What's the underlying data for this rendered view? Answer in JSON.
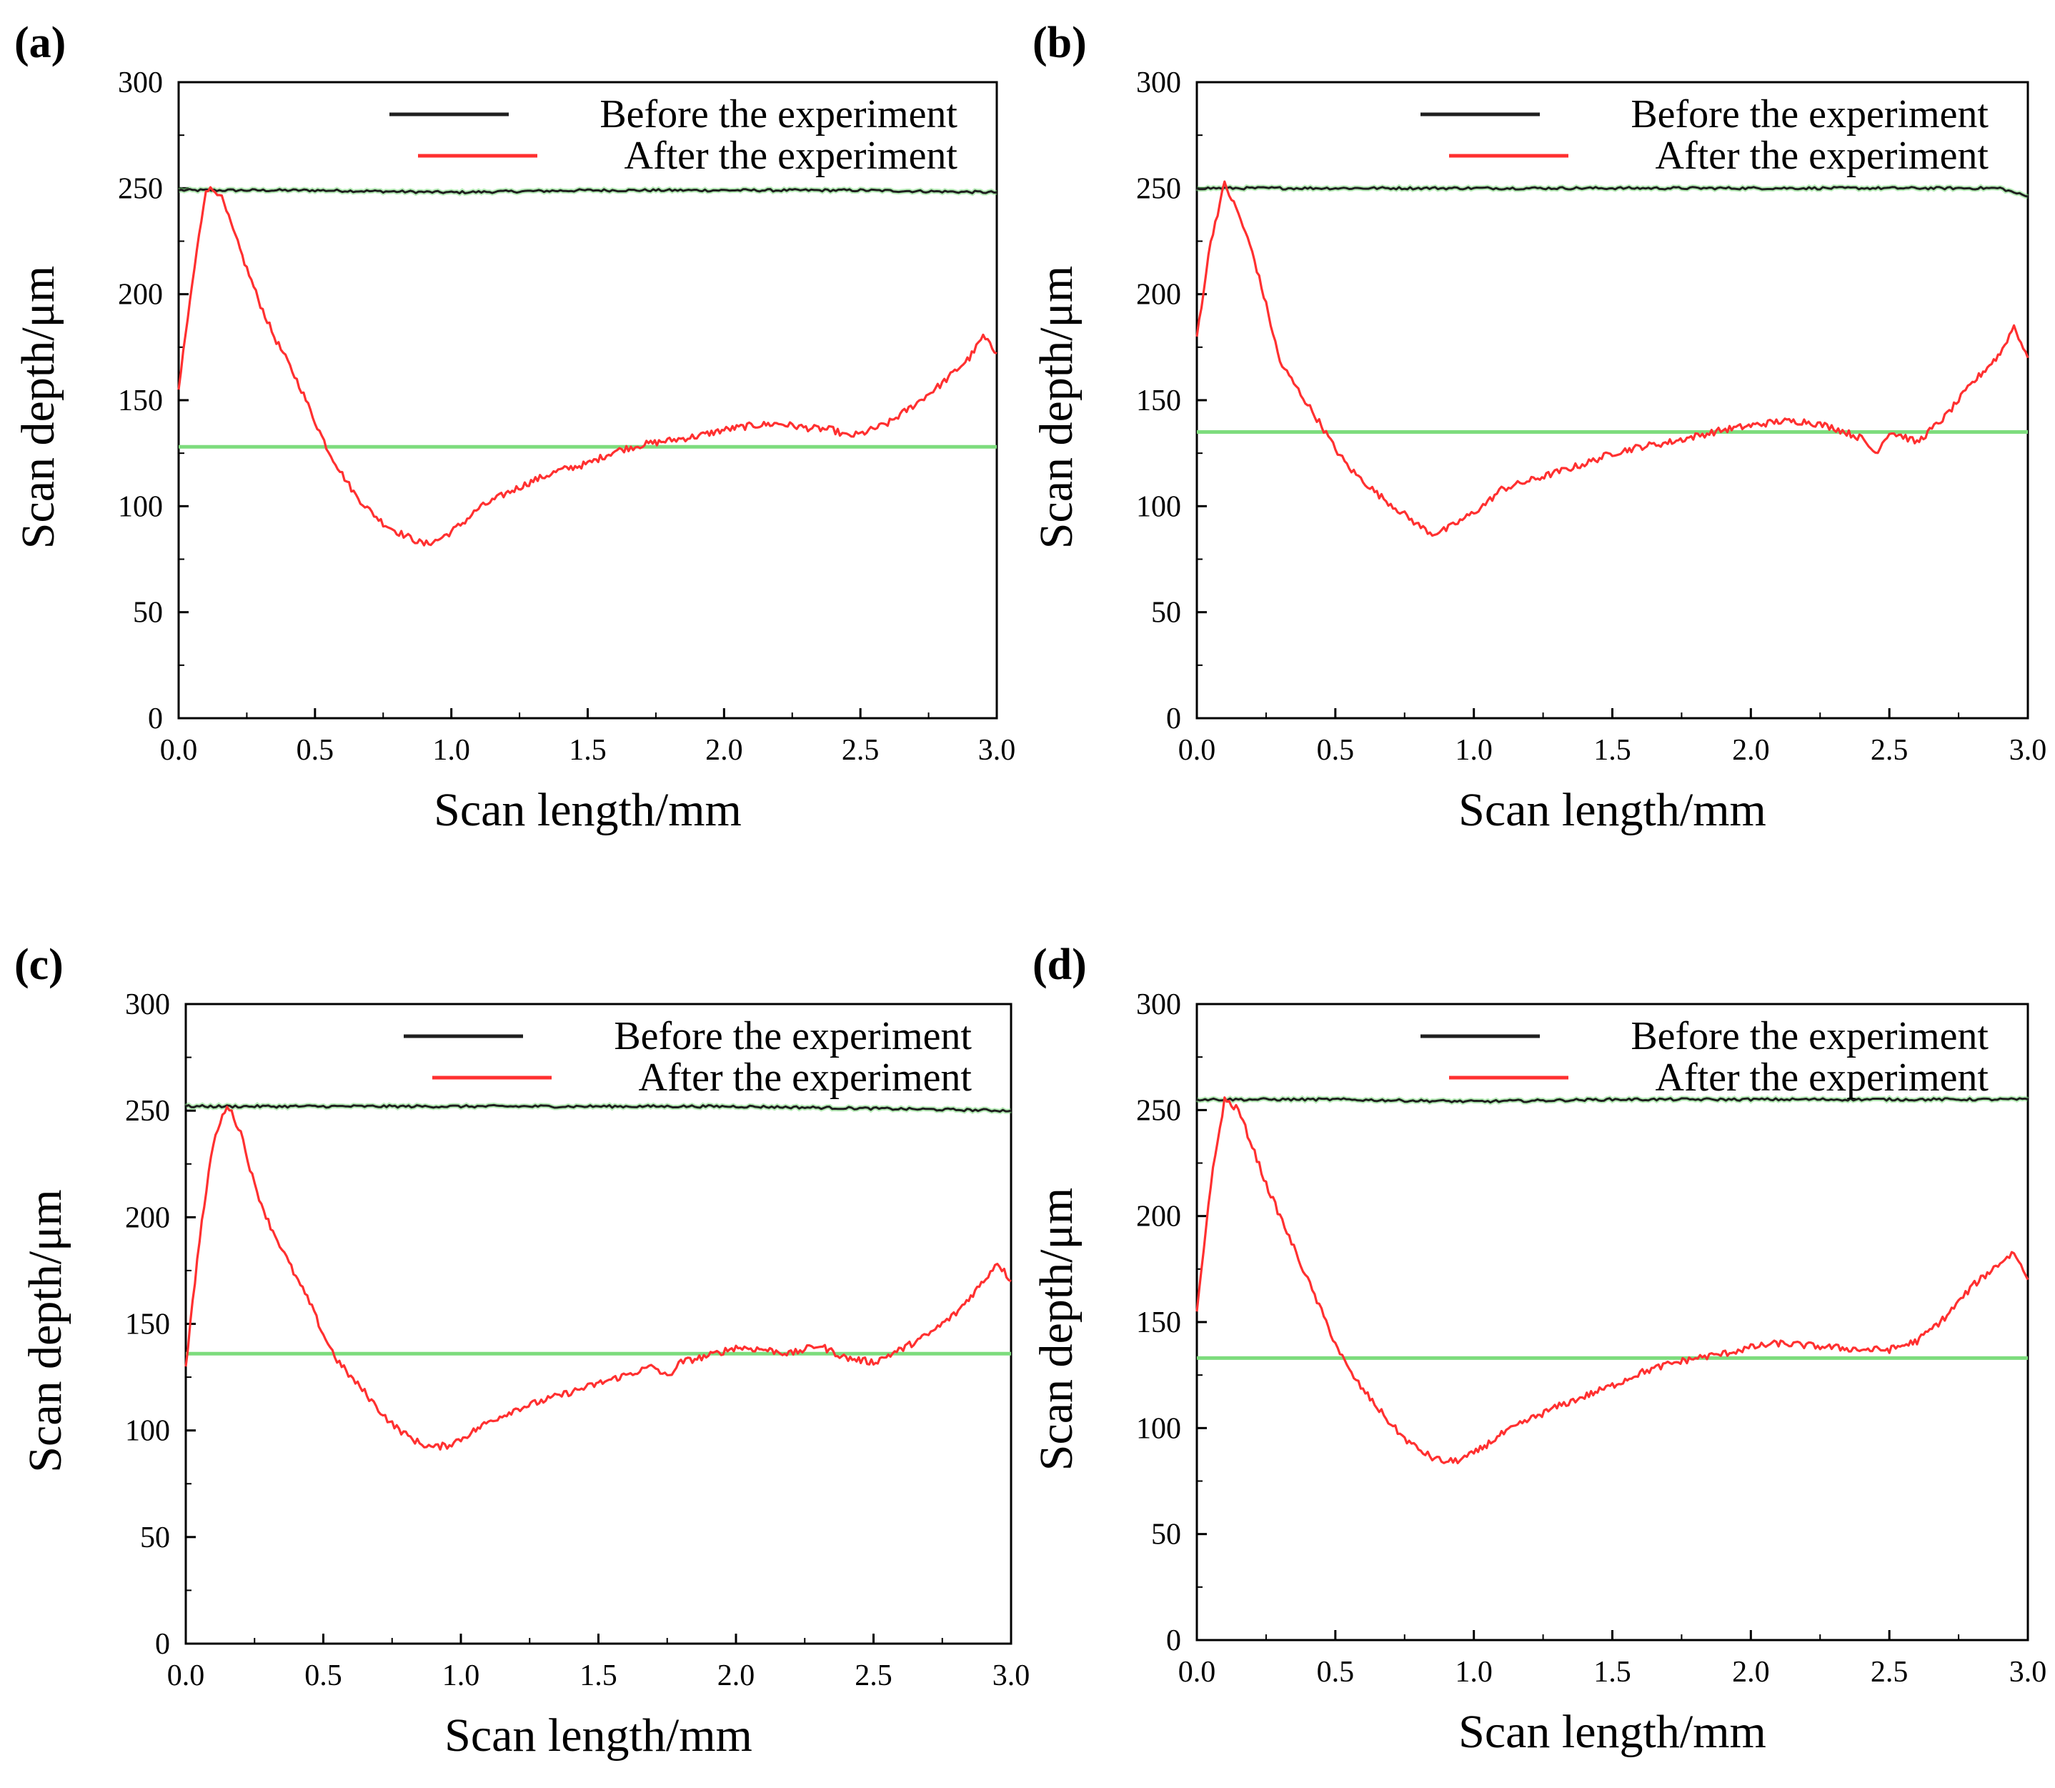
{
  "figure": {
    "colors": {
      "before": "#1f1f1f",
      "after": "#ff3030",
      "ref": "#7ddc7d",
      "axis": "#000000"
    }
  },
  "chart_data": [
    {
      "panel": "(a)",
      "type": "line",
      "xlabel": "Scan length/mm",
      "ylabel": "Scan depth/μm",
      "xlim": [
        0.0,
        3.0
      ],
      "ylim": [
        0,
        300
      ],
      "xticks": [
        "0.0",
        "0.5",
        "1.0",
        "1.5",
        "2.0",
        "2.5",
        "3.0"
      ],
      "yticks": [
        "0",
        "50",
        "100",
        "150",
        "200",
        "250",
        "300"
      ],
      "legend": [
        "Before the experiment",
        "After the experiment"
      ],
      "ref_line_y": 128,
      "series": [
        {
          "name": "Before the experiment",
          "x": [
            0.0,
            0.5,
            1.0,
            1.5,
            2.0,
            2.5,
            3.0
          ],
          "y": [
            249,
            249,
            248,
            249,
            249,
            249,
            248
          ]
        },
        {
          "name": "After the experiment",
          "x": [
            0.0,
            0.05,
            0.1,
            0.15,
            0.2,
            0.25,
            0.3,
            0.35,
            0.4,
            0.45,
            0.5,
            0.55,
            0.6,
            0.65,
            0.7,
            0.75,
            0.8,
            0.85,
            0.9,
            0.95,
            1.0,
            1.05,
            1.1,
            1.2,
            1.3,
            1.4,
            1.5,
            1.6,
            1.7,
            1.8,
            1.9,
            2.0,
            2.1,
            2.2,
            2.3,
            2.4,
            2.45,
            2.5,
            2.6,
            2.7,
            2.8,
            2.9,
            2.95,
            3.0
          ],
          "y": [
            155,
            205,
            250,
            248,
            230,
            212,
            195,
            180,
            168,
            155,
            140,
            126,
            115,
            105,
            98,
            92,
            88,
            85,
            82,
            84,
            88,
            93,
            99,
            106,
            112,
            117,
            120,
            126,
            129,
            131,
            133,
            136,
            138,
            139,
            137,
            136,
            133,
            134,
            139,
            148,
            158,
            170,
            180,
            172
          ]
        }
      ]
    },
    {
      "panel": "(b)",
      "type": "line",
      "xlabel": "Scan length/mm",
      "ylabel": "Scan depth/μm",
      "xlim": [
        0.0,
        3.0
      ],
      "ylim": [
        0,
        300
      ],
      "xticks": [
        "0.0",
        "0.5",
        "1.0",
        "1.5",
        "2.0",
        "2.5",
        "3.0"
      ],
      "yticks": [
        "0",
        "50",
        "100",
        "150",
        "200",
        "250",
        "300"
      ],
      "legend": [
        "Before the experiment",
        "After the experiment"
      ],
      "ref_line_y": 135,
      "series": [
        {
          "name": "Before the experiment",
          "x": [
            0.0,
            0.5,
            1.0,
            1.5,
            2.0,
            2.5,
            2.9,
            3.0
          ],
          "y": [
            250,
            250,
            250,
            250,
            250,
            250,
            250,
            246
          ]
        },
        {
          "name": "After the experiment",
          "x": [
            0.0,
            0.05,
            0.1,
            0.15,
            0.2,
            0.25,
            0.3,
            0.35,
            0.4,
            0.45,
            0.5,
            0.55,
            0.6,
            0.65,
            0.7,
            0.75,
            0.8,
            0.85,
            0.9,
            0.95,
            1.0,
            1.05,
            1.1,
            1.2,
            1.3,
            1.4,
            1.5,
            1.6,
            1.7,
            1.8,
            1.9,
            2.0,
            2.1,
            2.2,
            2.3,
            2.4,
            2.45,
            2.5,
            2.55,
            2.6,
            2.7,
            2.8,
            2.9,
            2.95,
            3.0
          ],
          "y": [
            180,
            225,
            252,
            238,
            220,
            195,
            168,
            158,
            148,
            138,
            127,
            118,
            112,
            106,
            101,
            96,
            91,
            87,
            89,
            93,
            97,
            102,
            108,
            112,
            116,
            120,
            125,
            128,
            130,
            133,
            136,
            138,
            140,
            140,
            137,
            132,
            125,
            135,
            133,
            130,
            142,
            158,
            172,
            185,
            170
          ]
        }
      ]
    },
    {
      "panel": "(c)",
      "type": "line",
      "xlabel": "Scan length/mm",
      "ylabel": "Scan depth/μm",
      "xlim": [
        0.0,
        3.0
      ],
      "ylim": [
        0,
        300
      ],
      "xticks": [
        "0.0",
        "0.5",
        "1.0",
        "1.5",
        "2.0",
        "2.5",
        "3.0"
      ],
      "yticks": [
        "0",
        "50",
        "100",
        "150",
        "200",
        "250",
        "300"
      ],
      "legend": [
        "Before the experiment",
        "After the experiment"
      ],
      "ref_line_y": 136,
      "series": [
        {
          "name": "Before the experiment",
          "x": [
            0.0,
            0.5,
            1.0,
            1.5,
            2.0,
            2.5,
            3.0
          ],
          "y": [
            252,
            252,
            252,
            252,
            252,
            251,
            250
          ]
        },
        {
          "name": "After the experiment",
          "x": [
            0.0,
            0.05,
            0.1,
            0.15,
            0.2,
            0.25,
            0.3,
            0.35,
            0.4,
            0.45,
            0.5,
            0.55,
            0.6,
            0.65,
            0.7,
            0.75,
            0.8,
            0.85,
            0.9,
            0.95,
            1.0,
            1.1,
            1.2,
            1.3,
            1.4,
            1.5,
            1.6,
            1.7,
            1.75,
            1.8,
            1.9,
            2.0,
            2.1,
            2.2,
            2.3,
            2.4,
            2.5,
            2.6,
            2.7,
            2.8,
            2.9,
            2.95,
            3.0
          ],
          "y": [
            130,
            190,
            235,
            253,
            240,
            215,
            198,
            185,
            172,
            160,
            145,
            133,
            125,
            118,
            110,
            103,
            98,
            94,
            92,
            93,
            96,
            104,
            110,
            114,
            118,
            122,
            126,
            130,
            125,
            132,
            135,
            139,
            138,
            136,
            140,
            134,
            132,
            138,
            145,
            155,
            170,
            179,
            170
          ]
        }
      ]
    },
    {
      "panel": "(d)",
      "type": "line",
      "xlabel": "Scan length/mm",
      "ylabel": "Scan depth/μm",
      "xlim": [
        0.0,
        3.0
      ],
      "ylim": [
        0,
        300
      ],
      "xticks": [
        "0.0",
        "0.5",
        "1.0",
        "1.5",
        "2.0",
        "2.5",
        "3.0"
      ],
      "yticks": [
        "0",
        "50",
        "100",
        "150",
        "200",
        "250",
        "300"
      ],
      "legend": [
        "Before the experiment",
        "After the experiment"
      ],
      "ref_line_y": 133,
      "series": [
        {
          "name": "Before the experiment",
          "x": [
            0.0,
            0.5,
            1.0,
            1.5,
            2.0,
            2.5,
            3.0
          ],
          "y": [
            255,
            255,
            254,
            255,
            255,
            255,
            255
          ]
        },
        {
          "name": "After the experiment",
          "x": [
            0.0,
            0.05,
            0.1,
            0.15,
            0.2,
            0.25,
            0.3,
            0.35,
            0.4,
            0.45,
            0.5,
            0.55,
            0.6,
            0.65,
            0.7,
            0.75,
            0.8,
            0.85,
            0.9,
            0.95,
            1.0,
            1.1,
            1.2,
            1.3,
            1.4,
            1.5,
            1.6,
            1.7,
            1.8,
            1.9,
            2.0,
            2.1,
            2.2,
            2.3,
            2.4,
            2.5,
            2.6,
            2.7,
            2.8,
            2.9,
            2.95,
            3.0
          ],
          "y": [
            155,
            215,
            255,
            250,
            233,
            215,
            200,
            185,
            170,
            155,
            140,
            127,
            118,
            110,
            102,
            95,
            90,
            86,
            84,
            85,
            88,
            97,
            104,
            110,
            115,
            120,
            126,
            130,
            133,
            135,
            138,
            140,
            139,
            138,
            137,
            137,
            141,
            152,
            167,
            178,
            183,
            170
          ]
        }
      ]
    }
  ]
}
